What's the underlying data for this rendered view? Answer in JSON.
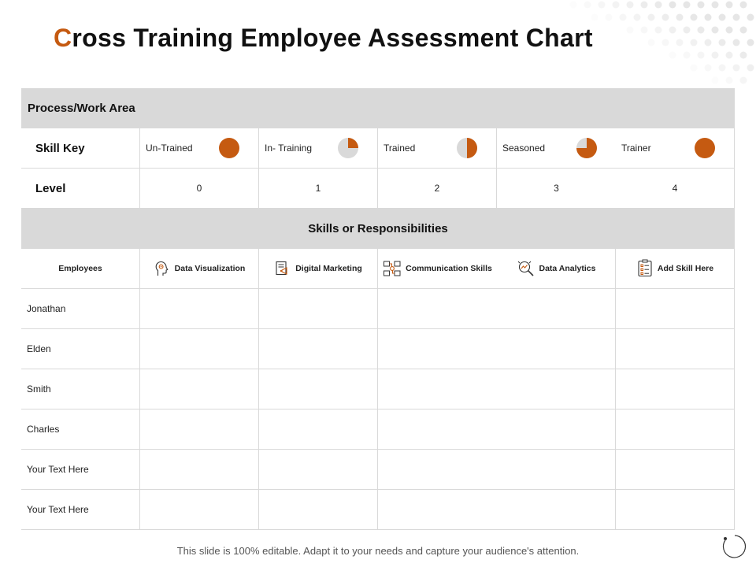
{
  "title": {
    "first_letter": "C",
    "rest": "ross Training Employee Assessment Chart"
  },
  "process_area_label": "Process/Work Area",
  "skill_key": {
    "label": "Skill Key",
    "items": [
      {
        "label": "Un-Trained",
        "fill_fraction": 1.0
      },
      {
        "label": "In- Training",
        "fill_fraction": 0.25
      },
      {
        "label": "Trained",
        "fill_fraction": 0.5
      },
      {
        "label": "Seasoned",
        "fill_fraction": 0.75
      },
      {
        "label": "Trainer",
        "fill_fraction": 1.0
      }
    ]
  },
  "level": {
    "label": "Level",
    "values": [
      "0",
      "1",
      "2",
      "3",
      "4"
    ]
  },
  "skills_band_label": "Skills or Responsibilities",
  "employees_header": "Employees",
  "skills": [
    {
      "label": "Data Visualization",
      "icon": "head-gear-icon"
    },
    {
      "label": "Digital Marketing",
      "icon": "megaphone-document-icon"
    },
    {
      "label": "Communication Skills",
      "icon": "network-people-icon"
    },
    {
      "label": "Data Analytics",
      "icon": "magnifier-chart-icon"
    },
    {
      "label": "Add Skill Here",
      "icon": "checklist-icon"
    }
  ],
  "employees": [
    "Jonathan",
    "Elden",
    "Smith",
    "Charles",
    "Your Text Here",
    "Your Text Here"
  ],
  "footer": "This slide is 100% editable. Adapt it to your needs and capture your audience's attention.",
  "colors": {
    "accent": "#c55a11",
    "band": "#d9d9d9",
    "pie_bg": "#d9d9d9"
  }
}
